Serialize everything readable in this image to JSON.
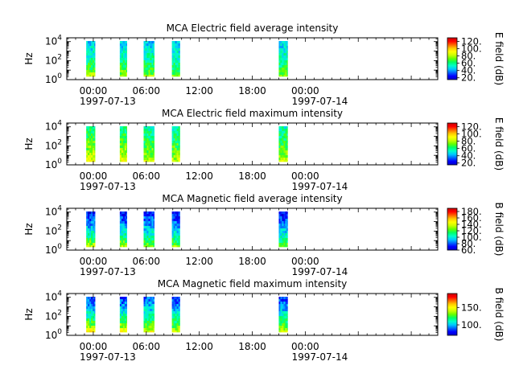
{
  "colors": {
    "colormap": [
      "#0000c8",
      "#0000ff",
      "#0064ff",
      "#00c8ff",
      "#00ffc8",
      "#00ff64",
      "#64ff00",
      "#c8ff00",
      "#ffff00",
      "#ffc800",
      "#ff6400",
      "#ff0000",
      "#c80000"
    ]
  },
  "chart_data": [
    {
      "type": "heatmap",
      "title": "MCA  Electric field average intensity",
      "ylabel": "Hz",
      "colorbar_label": "E field (dB)",
      "colorbar_range": [
        15,
        130
      ],
      "colorbar_ticks": [
        "20.",
        "40.",
        "60.",
        "80.",
        "100.",
        "120."
      ],
      "colorbar_tick_values": [
        20,
        40,
        60,
        80,
        100,
        120
      ],
      "y_ticks": [
        {
          "base": "10",
          "exp": "0",
          "value": 0
        },
        {
          "base": "10",
          "exp": "2",
          "value": 2
        },
        {
          "base": "10",
          "exp": "4",
          "value": 4
        }
      ],
      "y_log_range": [
        0,
        4.4
      ],
      "x_hours_range": [
        -3,
        39
      ],
      "x_ticks": [
        {
          "hour": 0,
          "label": "00:00",
          "date": "1997-07-13"
        },
        {
          "hour": 6,
          "label": "06:00",
          "date": ""
        },
        {
          "hour": 12,
          "label": "12:00",
          "date": ""
        },
        {
          "hour": 18,
          "label": "18:00",
          "date": ""
        },
        {
          "hour": 24,
          "label": "00:00",
          "date": "1997-07-14"
        }
      ],
      "data_segments": [
        {
          "start_hour": -0.8,
          "end_hour": 0.2,
          "low_hz_level": 85,
          "high_hz_level": 45
        },
        {
          "start_hour": 3.0,
          "end_hour": 3.8,
          "low_hz_level": 85,
          "high_hz_level": 45
        },
        {
          "start_hour": 5.7,
          "end_hour": 6.9,
          "low_hz_level": 80,
          "high_hz_level": 45
        },
        {
          "start_hour": 8.9,
          "end_hour": 9.8,
          "low_hz_level": 80,
          "high_hz_level": 45
        },
        {
          "start_hour": 21.0,
          "end_hour": 22.0,
          "low_hz_level": 80,
          "high_hz_level": 45
        }
      ]
    },
    {
      "type": "heatmap",
      "title": "MCA  Electric field maximum intensity",
      "ylabel": "Hz",
      "colorbar_label": "E field (dB)",
      "colorbar_range": [
        15,
        130
      ],
      "colorbar_ticks": [
        "20.",
        "40.",
        "60.",
        "80.",
        "100.",
        "120."
      ],
      "colorbar_tick_values": [
        20,
        40,
        60,
        80,
        100,
        120
      ],
      "y_ticks": [
        {
          "base": "10",
          "exp": "0",
          "value": 0
        },
        {
          "base": "10",
          "exp": "2",
          "value": 2
        },
        {
          "base": "10",
          "exp": "4",
          "value": 4
        }
      ],
      "y_log_range": [
        0,
        4.4
      ],
      "x_hours_range": [
        -3,
        39
      ],
      "x_ticks": [
        {
          "hour": 0,
          "label": "00:00",
          "date": "1997-07-13"
        },
        {
          "hour": 6,
          "label": "06:00",
          "date": ""
        },
        {
          "hour": 12,
          "label": "12:00",
          "date": ""
        },
        {
          "hour": 18,
          "label": "18:00",
          "date": ""
        },
        {
          "hour": 24,
          "label": "00:00",
          "date": "1997-07-14"
        }
      ],
      "data_segments": [
        {
          "start_hour": -0.8,
          "end_hour": 0.2,
          "low_hz_level": 95,
          "high_hz_level": 60
        },
        {
          "start_hour": 3.0,
          "end_hour": 3.8,
          "low_hz_level": 95,
          "high_hz_level": 60
        },
        {
          "start_hour": 5.7,
          "end_hour": 6.9,
          "low_hz_level": 90,
          "high_hz_level": 55
        },
        {
          "start_hour": 8.9,
          "end_hour": 9.8,
          "low_hz_level": 90,
          "high_hz_level": 55
        },
        {
          "start_hour": 21.0,
          "end_hour": 22.0,
          "low_hz_level": 90,
          "high_hz_level": 55
        }
      ]
    },
    {
      "type": "heatmap",
      "title": "MCA  Magnetic field average intensity",
      "ylabel": "Hz",
      "colorbar_label": "B field (dB)",
      "colorbar_range": [
        60,
        190
      ],
      "colorbar_ticks": [
        "60.",
        "80.",
        "100.",
        "120.",
        "140.",
        "160.",
        "180."
      ],
      "colorbar_tick_values": [
        60,
        80,
        100,
        120,
        140,
        160,
        180
      ],
      "y_ticks": [
        {
          "base": "10",
          "exp": "0",
          "value": 0
        },
        {
          "base": "10",
          "exp": "2",
          "value": 2
        },
        {
          "base": "10",
          "exp": "4",
          "value": 4
        }
      ],
      "y_log_range": [
        0,
        4.4
      ],
      "x_hours_range": [
        -3,
        39
      ],
      "x_ticks": [
        {
          "hour": 0,
          "label": "00:00",
          "date": "1997-07-13"
        },
        {
          "hour": 6,
          "label": "06:00",
          "date": ""
        },
        {
          "hour": 12,
          "label": "12:00",
          "date": ""
        },
        {
          "hour": 18,
          "label": "18:00",
          "date": ""
        },
        {
          "hour": 24,
          "label": "00:00",
          "date": "1997-07-14"
        }
      ],
      "data_segments": [
        {
          "start_hour": -0.8,
          "end_hour": 0.2,
          "low_hz_level": 150,
          "high_hz_level": 70
        },
        {
          "start_hour": 3.0,
          "end_hour": 3.8,
          "low_hz_level": 150,
          "high_hz_level": 70
        },
        {
          "start_hour": 5.7,
          "end_hour": 6.9,
          "low_hz_level": 140,
          "high_hz_level": 75
        },
        {
          "start_hour": 8.9,
          "end_hour": 9.8,
          "low_hz_level": 140,
          "high_hz_level": 70
        },
        {
          "start_hour": 21.0,
          "end_hour": 22.0,
          "low_hz_level": 140,
          "high_hz_level": 70
        }
      ]
    },
    {
      "type": "heatmap",
      "title": "MCA  Magnetic field maximum intensity",
      "ylabel": "Hz",
      "colorbar_label": "B field (dB)",
      "colorbar_range": [
        70,
        190
      ],
      "colorbar_ticks": [
        "100.",
        "150."
      ],
      "colorbar_tick_values": [
        100,
        150
      ],
      "y_ticks": [
        {
          "base": "10",
          "exp": "0",
          "value": 0
        },
        {
          "base": "10",
          "exp": "2",
          "value": 2
        },
        {
          "base": "10",
          "exp": "4",
          "value": 4
        }
      ],
      "y_log_range": [
        0,
        4.4
      ],
      "x_hours_range": [
        -3,
        39
      ],
      "x_ticks": [
        {
          "hour": 0,
          "label": "00:00",
          "date": "1997-07-13"
        },
        {
          "hour": 6,
          "label": "06:00",
          "date": ""
        },
        {
          "hour": 12,
          "label": "12:00",
          "date": ""
        },
        {
          "hour": 18,
          "label": "18:00",
          "date": ""
        },
        {
          "hour": 24,
          "label": "00:00",
          "date": "1997-07-14"
        }
      ],
      "data_segments": [
        {
          "start_hour": -0.8,
          "end_hour": 0.2,
          "low_hz_level": 165,
          "high_hz_level": 85
        },
        {
          "start_hour": 3.0,
          "end_hour": 3.8,
          "low_hz_level": 165,
          "high_hz_level": 85
        },
        {
          "start_hour": 5.7,
          "end_hour": 6.9,
          "low_hz_level": 155,
          "high_hz_level": 90
        },
        {
          "start_hour": 8.9,
          "end_hour": 9.8,
          "low_hz_level": 155,
          "high_hz_level": 85
        },
        {
          "start_hour": 21.0,
          "end_hour": 22.0,
          "low_hz_level": 155,
          "high_hz_level": 85
        }
      ]
    }
  ]
}
